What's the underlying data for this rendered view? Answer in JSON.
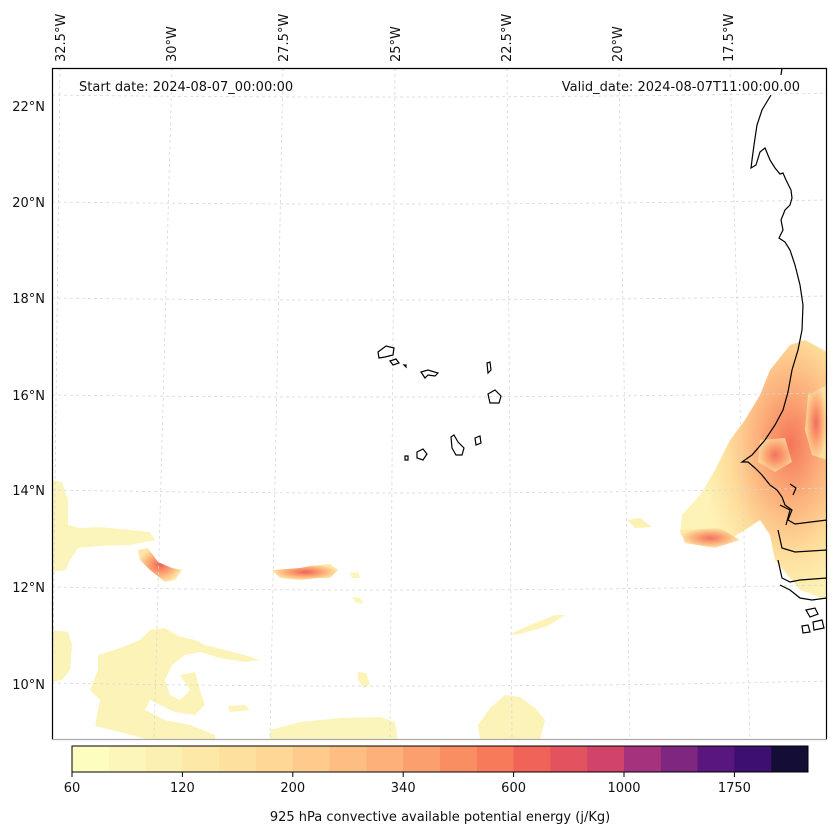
{
  "map": {
    "type": "filled-contour-map",
    "start_date_label": "Start date: 2024-08-07_00:00:00",
    "valid_date_label": "Valid_date: 2024-08-07T11:00:00.00",
    "longitude_labels": [
      "32.5°W",
      "30°W",
      "27.5°W",
      "25°W",
      "22.5°W",
      "20°W",
      "17.5°W"
    ],
    "latitude_labels": [
      "22°N",
      "20°N",
      "18°N",
      "16°N",
      "14°N",
      "12°N",
      "10°N"
    ],
    "lon_range": [
      -32.5,
      -15.8
    ],
    "lat_range": [
      8.9,
      22.8
    ],
    "gridlines": true,
    "features": [
      "coastline West Africa (Mauritania, Senegal, Gambia, Guinea-Bissau)",
      "Cape Verde islands"
    ],
    "cape_regions": [
      {
        "name": "Senegal/Mauritania interior",
        "max_level": "1000"
      },
      {
        "name": "Offshore Senegal blob near 13°N 18.5°W",
        "max_level": "600"
      },
      {
        "name": "Band near 12.3°N 30°W",
        "max_level": "600"
      },
      {
        "name": "Band near 12.3°N 27°W",
        "max_level": "600"
      },
      {
        "name": "Southwest ocean region 9-11°N",
        "max_level": "200"
      },
      {
        "name": "Western edge 12.5-14°N",
        "max_level": "120"
      }
    ]
  },
  "chart_data": {
    "type": "heatmap",
    "title": "",
    "colorbar_label": "925 hPa convective available potential energy (j/Kg)",
    "colorbar_ticks": [
      "60",
      "120",
      "200",
      "340",
      "600",
      "1000",
      "1750"
    ],
    "colorbar_levels": 20,
    "colorbar_colors": [
      "#fcfdbf",
      "#fcf6bb",
      "#fcefb2",
      "#fde8a8",
      "#fee09e",
      "#fed796",
      "#fecb8c",
      "#febe82",
      "#fdb07a",
      "#fc9f6f",
      "#fa8e63",
      "#f77a5b",
      "#ef6358",
      "#e2535f",
      "#cf4468",
      "#a5327c",
      "#7f2681",
      "#59167c",
      "#3c0f70",
      "#140e36"
    ]
  }
}
